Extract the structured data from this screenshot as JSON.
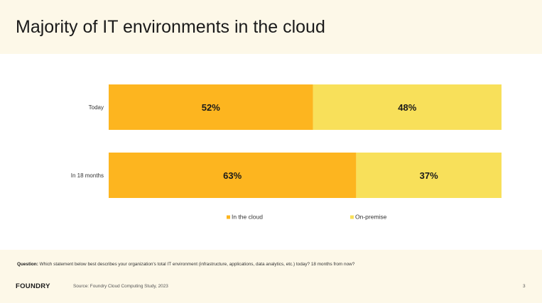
{
  "slide": {
    "title": "Majority of IT environments in the cloud",
    "question_label": "Question:",
    "question_text": "Which statement below best describes your organization's total IT environment (infrastructure, applications, data analytics, etc.) today? 18 months from now?",
    "logo": "FOUNDRY",
    "source": "Source: Foundry Cloud Computing Study, 2023",
    "page_number": "3"
  },
  "chart_data": {
    "type": "bar",
    "orientation": "horizontal",
    "stacked": true,
    "percent": true,
    "categories": [
      "Today",
      "In 18 months"
    ],
    "series": [
      {
        "name": "In the cloud",
        "values": [
          52,
          63
        ],
        "labels": [
          "52%",
          "63%"
        ],
        "color": "#fdb51f"
      },
      {
        "name": "On-premise",
        "values": [
          48,
          37
        ],
        "labels": [
          "48%",
          "37%"
        ],
        "color": "#f8e05a"
      }
    ],
    "xlim": [
      0,
      100
    ],
    "grid": false,
    "legend": "bottom"
  }
}
